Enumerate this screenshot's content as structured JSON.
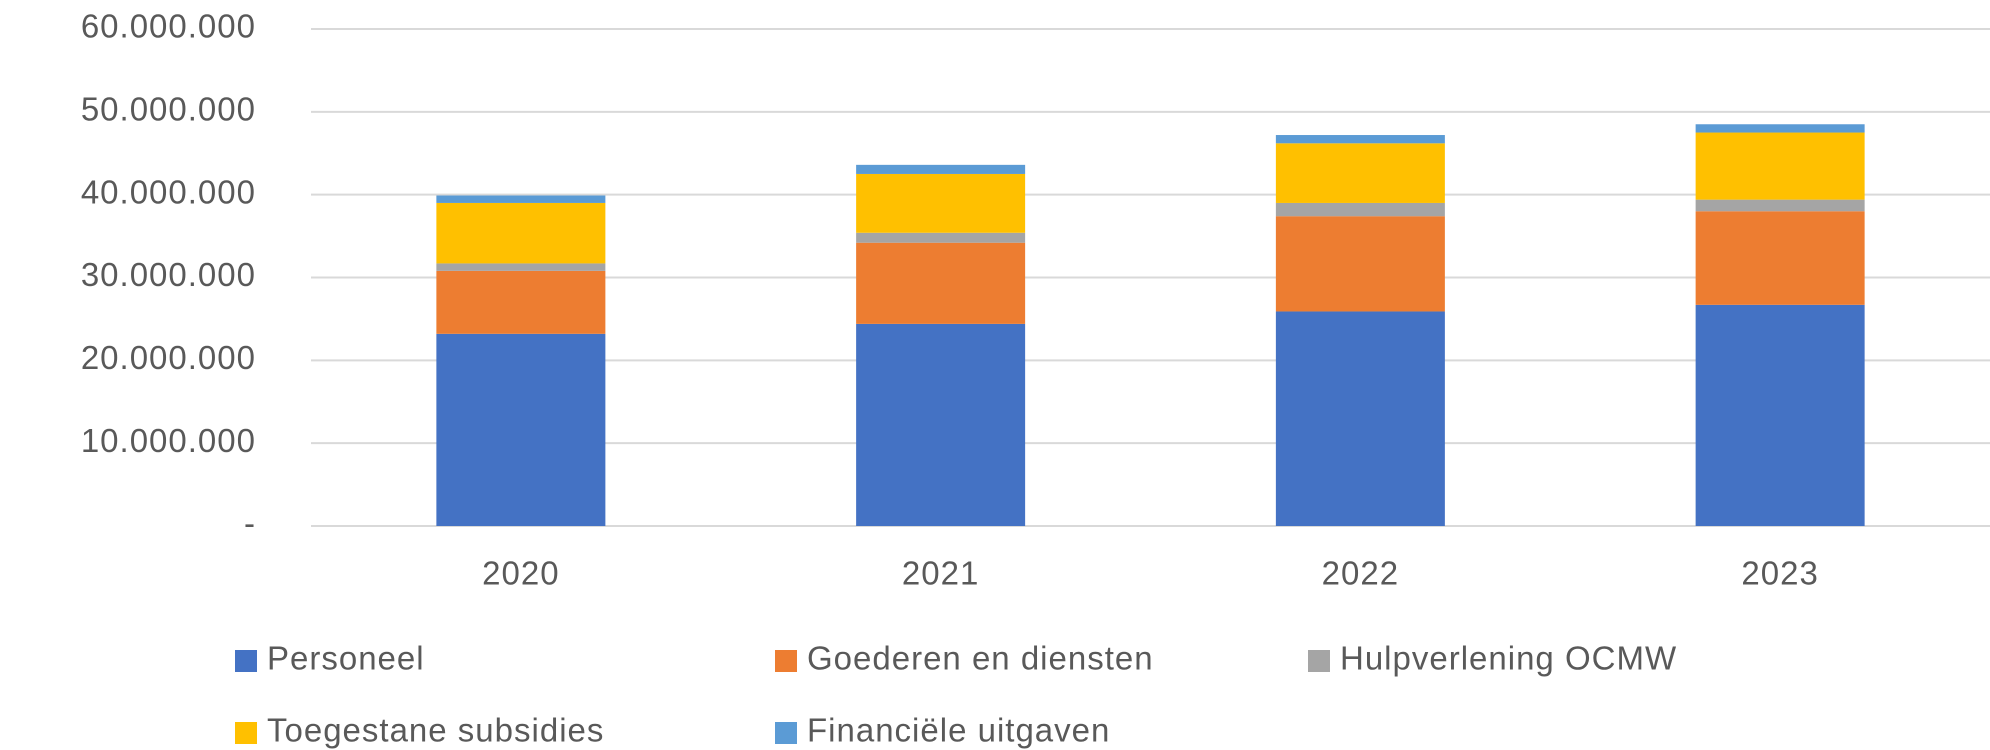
{
  "chart_data": {
    "type": "stacked_bar",
    "categories": [
      "2020",
      "2021",
      "2022",
      "2023"
    ],
    "series": [
      {
        "name": "Personeel",
        "color": "#4472c4",
        "values": [
          23200000,
          24400000,
          25900000,
          26700000
        ]
      },
      {
        "name": "Goederen en diensten",
        "color": "#ed7d31",
        "values": [
          7600000,
          9800000,
          11500000,
          11300000
        ]
      },
      {
        "name": "Hulpverlening OCMW",
        "color": "#a5a5a5",
        "values": [
          900000,
          1200000,
          1600000,
          1400000
        ]
      },
      {
        "name": "Toegestane subsidies",
        "color": "#ffc000",
        "values": [
          7300000,
          7100000,
          7200000,
          8100000
        ]
      },
      {
        "name": "Financiële uitgaven",
        "color": "#5b9bd5",
        "values": [
          900000,
          1100000,
          1000000,
          1000000
        ]
      }
    ],
    "ylim": [
      0,
      60000000
    ],
    "yticks": [
      {
        "value": 0,
        "label": "-"
      },
      {
        "value": 10000000,
        "label": "10.000.000"
      },
      {
        "value": 20000000,
        "label": "20.000.000"
      },
      {
        "value": 30000000,
        "label": "30.000.000"
      },
      {
        "value": 40000000,
        "label": "40.000.000"
      },
      {
        "value": 50000000,
        "label": "50.000.000"
      },
      {
        "value": 60000000,
        "label": "60.000.000"
      }
    ],
    "grid": true,
    "legend": "bottom"
  }
}
